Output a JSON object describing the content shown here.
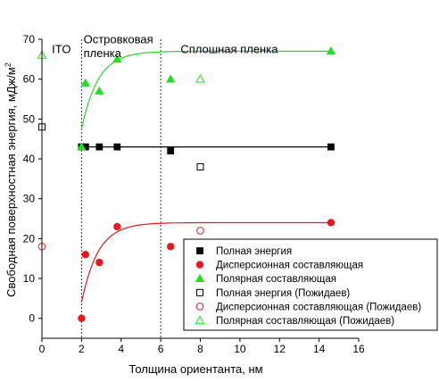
{
  "chart_data": {
    "type": "scatter",
    "xlabel": "Толщина ориентанта, нм",
    "ylabel": "Свободная поверхностная энергия, мДж/м",
    "ylabel_superscript": "2",
    "xlim": [
      0,
      16
    ],
    "ylim": [
      -5,
      70
    ],
    "x_ticks": [
      0,
      2,
      4,
      6,
      8,
      10,
      12,
      14,
      16
    ],
    "y_ticks": [
      0,
      10,
      20,
      30,
      40,
      50,
      60,
      70
    ],
    "grid": false,
    "legend_position": "bottom-right",
    "region_boundaries": [
      2,
      6
    ],
    "annotations": [
      {
        "text": "ITO",
        "x": 0.5,
        "y": 66.5
      },
      {
        "text": "Островковая",
        "x": 2.1,
        "y": 69
      },
      {
        "text": "пленка",
        "x": 2.1,
        "y": 65.5
      },
      {
        "text": "Сплошная пленка",
        "x": 7,
        "y": 66.5
      }
    ],
    "series": [
      {
        "name": "Полная энергия",
        "marker": "square",
        "filled": true,
        "color": "#000000",
        "x": [
          2.0,
          2.2,
          2.9,
          3.8,
          6.5,
          14.6
        ],
        "y": [
          43,
          43,
          43,
          43,
          42,
          43
        ]
      },
      {
        "name": "Дисперсионная составляющая",
        "marker": "circle",
        "filled": true,
        "color": "#e8191c",
        "x": [
          2.0,
          2.2,
          2.9,
          3.8,
          6.5,
          14.6
        ],
        "y": [
          0,
          16,
          14,
          23,
          18,
          24
        ]
      },
      {
        "name": "Полярная составляющая",
        "marker": "triangle",
        "filled": true,
        "color": "#22dd22",
        "x": [
          2.0,
          2.2,
          2.9,
          3.8,
          6.5,
          14.6
        ],
        "y": [
          43,
          59,
          57,
          65,
          60,
          67
        ]
      },
      {
        "name": "Полная энергия (Пожидаев)",
        "marker": "square",
        "filled": false,
        "color": "#000000",
        "x": [
          0.0,
          8.0
        ],
        "y": [
          48,
          38
        ]
      },
      {
        "name": "Дисперсионная составляющая (Пожидаев)",
        "marker": "circle",
        "filled": false,
        "color": "#e8191c",
        "x": [
          0.0,
          8.0
        ],
        "y": [
          18,
          22
        ]
      },
      {
        "name": "Полярная составляющая (Пожидаев)",
        "marker": "triangle",
        "filled": false,
        "color": "#22dd22",
        "x": [
          0.0,
          8.0
        ],
        "y": [
          66,
          60
        ]
      }
    ],
    "fit_lines": [
      {
        "series": "Полная энергия",
        "type": "constant",
        "color": "#000000",
        "x_range": [
          2,
          14.6
        ],
        "value": 43
      },
      {
        "series": "Дисперсионная составляющая",
        "type": "exp_saturation",
        "color": "#e8191c",
        "x_range": [
          2,
          14.6
        ],
        "y0": 4,
        "y_inf": 24,
        "rate": 1.2
      },
      {
        "series": "Полярная составляющая",
        "type": "exp_saturation",
        "color": "#22dd22",
        "x_range": [
          2,
          14.6
        ],
        "y0": 47.5,
        "y_inf": 67,
        "rate": 1.2
      }
    ]
  }
}
